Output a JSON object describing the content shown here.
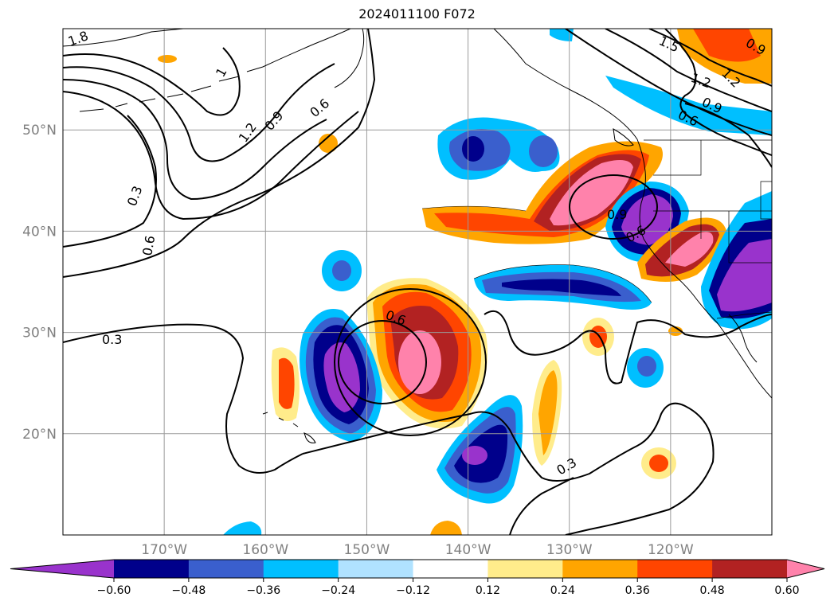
{
  "title": "2024011100 F072",
  "map": {
    "lon_range": [
      -180,
      -110
    ],
    "lat_range": [
      10,
      60
    ],
    "grid": true,
    "lat_ticks": [
      {
        "value": 20,
        "label": "20°N"
      },
      {
        "value": 30,
        "label": "30°N"
      },
      {
        "value": 40,
        "label": "40°N"
      },
      {
        "value": 50,
        "label": "50°N"
      }
    ],
    "lon_ticks": [
      {
        "value": -170,
        "label": "170°W"
      },
      {
        "value": -160,
        "label": "160°W"
      },
      {
        "value": -150,
        "label": "150°W"
      },
      {
        "value": -140,
        "label": "140°W"
      },
      {
        "value": -130,
        "label": "130°W"
      },
      {
        "value": -120,
        "label": "120°W"
      }
    ],
    "contour_labels": [
      "1.8",
      "1",
      "1.2",
      "0.9",
      "0.6",
      "0.3",
      "0.6",
      "0.3",
      "0.6",
      "0.9",
      "0.6",
      "0.3",
      "1.5",
      "1.2",
      "0.9",
      "0.6",
      "0.9",
      "1.2"
    ]
  },
  "colorbar": {
    "levels": [
      "−0.60",
      "−0.48",
      "−0.36",
      "−0.24",
      "−0.12",
      "0.12",
      "0.24",
      "0.36",
      "0.48",
      "0.60"
    ],
    "colors": [
      "#9933cc",
      "#00008b",
      "#3a5fcd",
      "#00bfff",
      "#b0e2ff",
      "#ffffff",
      "#ffec8b",
      "#ffa500",
      "#ff4500",
      "#b22222",
      "#ff82ab"
    ],
    "extend": "both"
  }
}
